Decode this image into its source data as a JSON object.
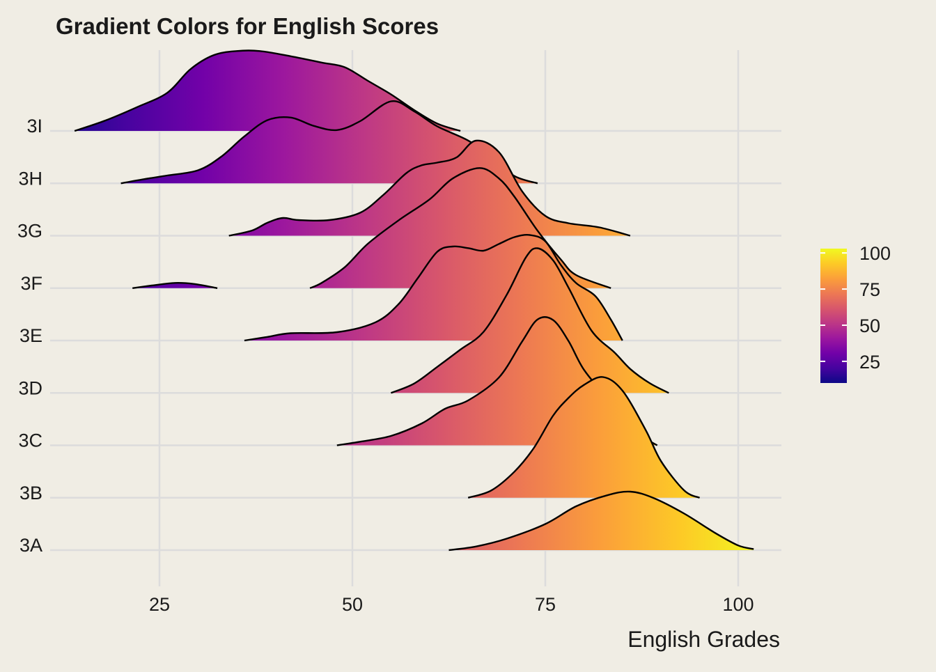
{
  "chart_data": {
    "type": "ridgeline",
    "title": "Gradient Colors for English Scores",
    "xlabel": "English Grades",
    "ylabel": "",
    "xlim": [
      10,
      106
    ],
    "x_ticks": [
      "25",
      "50",
      "75",
      "100"
    ],
    "x_tick_values": [
      25,
      50,
      75,
      100
    ],
    "categories": [
      "3A",
      "3B",
      "3C",
      "3D",
      "3E",
      "3F",
      "3G",
      "3H",
      "3I"
    ],
    "grid": true,
    "colormap": "plasma",
    "legend": {
      "position": "right",
      "min": 10,
      "max": 103,
      "ticks": [
        "25",
        "50",
        "75",
        "100"
      ],
      "tick_values": [
        25,
        50,
        75,
        100
      ],
      "colors": [
        "#0d0887",
        "#46039f",
        "#7201a8",
        "#9c179e",
        "#bd3786",
        "#d8576b",
        "#ed7953",
        "#fb9f3a",
        "#fdca26",
        "#f0f921"
      ]
    },
    "series": [
      {
        "name": "3A",
        "points": [
          [
            62.5,
            0.0
          ],
          [
            66,
            0.07
          ],
          [
            70,
            0.22
          ],
          [
            75,
            0.5
          ],
          [
            79,
            0.84
          ],
          [
            83,
            1.05
          ],
          [
            86,
            1.12
          ],
          [
            89,
            1.0
          ],
          [
            93,
            0.7
          ],
          [
            97,
            0.33
          ],
          [
            100,
            0.09
          ],
          [
            102,
            0.02
          ]
        ]
      },
      {
        "name": "3B",
        "points": [
          [
            65,
            0.0
          ],
          [
            68,
            0.14
          ],
          [
            71,
            0.5
          ],
          [
            73.5,
            0.95
          ],
          [
            76,
            1.57
          ],
          [
            78,
            1.91
          ],
          [
            80,
            2.16
          ],
          [
            82.5,
            2.31
          ],
          [
            85,
            2.05
          ],
          [
            88,
            1.3
          ],
          [
            90,
            0.7
          ],
          [
            93,
            0.14
          ],
          [
            95,
            0.0
          ]
        ]
      },
      {
        "name": "3C",
        "points": [
          [
            48,
            0.0
          ],
          [
            51,
            0.07
          ],
          [
            55,
            0.18
          ],
          [
            59,
            0.42
          ],
          [
            62,
            0.7
          ],
          [
            65,
            0.86
          ],
          [
            69,
            1.3
          ],
          [
            72,
            1.99
          ],
          [
            74,
            2.41
          ],
          [
            76,
            2.4
          ],
          [
            78,
            2.0
          ],
          [
            80,
            1.45
          ],
          [
            83,
            0.93
          ],
          [
            86,
            0.55
          ],
          [
            88,
            0.15
          ],
          [
            89.5,
            0.0
          ]
        ]
      },
      {
        "name": "3D",
        "points": [
          [
            55,
            0.0
          ],
          [
            58,
            0.18
          ],
          [
            61,
            0.5
          ],
          [
            64,
            0.83
          ],
          [
            67,
            1.17
          ],
          [
            70,
            1.88
          ],
          [
            72.5,
            2.6
          ],
          [
            74,
            2.77
          ],
          [
            76,
            2.54
          ],
          [
            78,
            2.02
          ],
          [
            81,
            1.19
          ],
          [
            84,
            0.77
          ],
          [
            86,
            0.46
          ],
          [
            88.5,
            0.19
          ],
          [
            91,
            0.0
          ]
        ]
      },
      {
        "name": "3E",
        "points": [
          [
            36,
            0.0
          ],
          [
            39,
            0.07
          ],
          [
            42,
            0.14
          ],
          [
            48,
            0.16
          ],
          [
            53,
            0.35
          ],
          [
            56,
            0.7
          ],
          [
            58.5,
            1.2
          ],
          [
            61,
            1.7
          ],
          [
            63,
            1.8
          ],
          [
            65,
            1.77
          ],
          [
            67,
            1.72
          ],
          [
            69,
            1.85
          ],
          [
            71,
            1.98
          ],
          [
            73,
            2.02
          ],
          [
            75,
            1.9
          ],
          [
            77,
            1.45
          ],
          [
            79,
            1.1
          ],
          [
            81.5,
            0.85
          ],
          [
            83.5,
            0.4
          ],
          [
            85,
            0.0
          ]
        ]
      },
      {
        "name": "3F",
        "points": [
          [
            21.5,
            0.0
          ],
          [
            24,
            0.05
          ],
          [
            27,
            0.1
          ],
          [
            29.5,
            0.08
          ],
          [
            32.5,
            0.0
          ],
          [
            44.5,
            0.0
          ],
          [
            46,
            0.1
          ],
          [
            49,
            0.4
          ],
          [
            52,
            0.85
          ],
          [
            56,
            1.3
          ],
          [
            60,
            1.7
          ],
          [
            63,
            2.1
          ],
          [
            66.5,
            2.3
          ],
          [
            69,
            2.1
          ],
          [
            71,
            1.75
          ],
          [
            74,
            1.1
          ],
          [
            77,
            0.55
          ],
          [
            79,
            0.25
          ],
          [
            83.5,
            0.0
          ]
        ]
      },
      {
        "name": "3G",
        "points": [
          [
            34,
            0.0
          ],
          [
            37,
            0.1
          ],
          [
            39,
            0.25
          ],
          [
            41,
            0.34
          ],
          [
            43,
            0.3
          ],
          [
            47,
            0.3
          ],
          [
            51,
            0.44
          ],
          [
            54,
            0.78
          ],
          [
            57,
            1.2
          ],
          [
            59,
            1.35
          ],
          [
            61,
            1.4
          ],
          [
            63.5,
            1.5
          ],
          [
            66,
            1.82
          ],
          [
            69,
            1.6
          ],
          [
            72,
            0.85
          ],
          [
            75,
            0.38
          ],
          [
            78,
            0.24
          ],
          [
            82,
            0.16
          ],
          [
            86,
            0.0
          ]
        ]
      },
      {
        "name": "3H",
        "points": [
          [
            20,
            0.0
          ],
          [
            23,
            0.08
          ],
          [
            26,
            0.15
          ],
          [
            30,
            0.25
          ],
          [
            33,
            0.51
          ],
          [
            36,
            0.9
          ],
          [
            39,
            1.21
          ],
          [
            42,
            1.26
          ],
          [
            45,
            1.1
          ],
          [
            48,
            1.02
          ],
          [
            51,
            1.19
          ],
          [
            55,
            1.57
          ],
          [
            58,
            1.38
          ],
          [
            61,
            1.09
          ],
          [
            65,
            0.82
          ],
          [
            68,
            0.5
          ],
          [
            71,
            0.14
          ],
          [
            74,
            0.0
          ]
        ]
      },
      {
        "name": "3I",
        "points": [
          [
            14,
            0.0
          ],
          [
            18,
            0.2
          ],
          [
            22,
            0.45
          ],
          [
            26,
            0.73
          ],
          [
            29,
            1.18
          ],
          [
            32,
            1.45
          ],
          [
            35,
            1.53
          ],
          [
            38,
            1.53
          ],
          [
            42,
            1.43
          ],
          [
            46,
            1.31
          ],
          [
            49,
            1.22
          ],
          [
            52,
            0.96
          ],
          [
            55,
            0.7
          ],
          [
            58,
            0.4
          ],
          [
            61,
            0.14
          ],
          [
            64,
            0.0
          ]
        ]
      }
    ]
  }
}
